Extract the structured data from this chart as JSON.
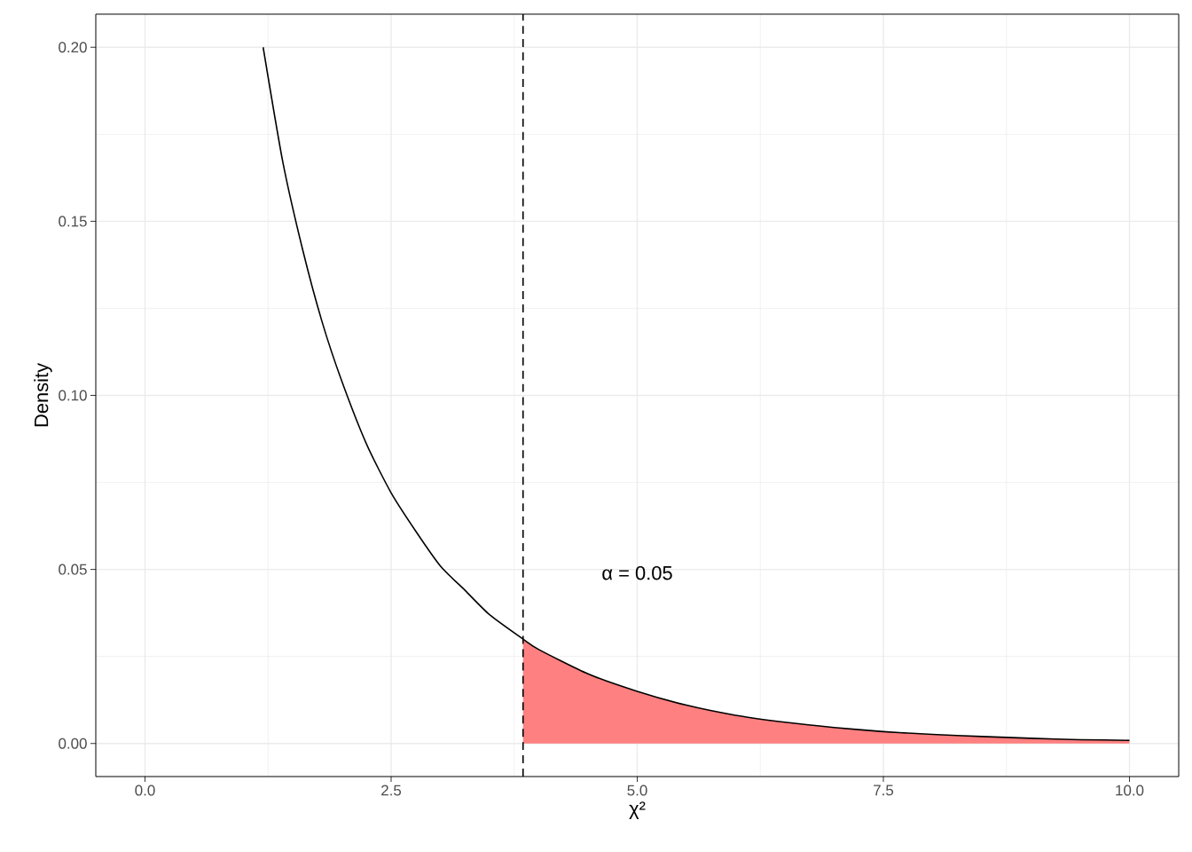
{
  "chart_data": {
    "type": "line",
    "xlabel": "χ²",
    "ylabel": "Density",
    "series": [
      {
        "type": "area",
        "color": "#ff8080",
        "x": [
          3.84,
          4.0,
          4.5,
          5.0,
          5.5,
          6.0,
          6.5,
          7.0,
          7.5,
          8.0,
          8.5,
          9.0,
          9.5,
          10.0
        ],
        "values": [
          0.03,
          0.027,
          0.02,
          0.015,
          0.011,
          0.0081,
          0.0061,
          0.0046,
          0.0034,
          0.0026,
          0.002,
          0.0015,
          0.0011,
          0.0009
        ]
      },
      {
        "color": "#000000",
        "x": [
          1.2,
          1.4,
          1.6,
          1.8,
          2.0,
          2.25,
          2.5,
          2.75,
          3.0,
          3.25,
          3.5,
          3.84,
          4.0,
          4.5,
          5.0,
          5.5,
          6.0,
          6.5,
          7.0,
          7.5,
          8.0,
          8.5,
          9.0,
          9.5,
          10.0
        ],
        "values": [
          0.2,
          0.167,
          0.142,
          0.121,
          0.104,
          0.086,
          0.072,
          0.061,
          0.051,
          0.044,
          0.037,
          0.03,
          0.027,
          0.02,
          0.015,
          0.011,
          0.0081,
          0.0061,
          0.0046,
          0.0034,
          0.0026,
          0.002,
          0.0015,
          0.0011,
          0.0009
        ]
      }
    ],
    "ref_lines": [
      {
        "axis": "x",
        "value": 3.84,
        "color": "#000000",
        "line_style": "dashed"
      }
    ],
    "annotations": [
      "α = 0.05"
    ],
    "xlim": [
      -0.5,
      10.5
    ],
    "ylim": [
      -0.0095,
      0.2095
    ],
    "xticks": [
      {
        "value": 0,
        "label": "0.0"
      },
      2.5,
      {
        "value": 5,
        "label": "5.0"
      },
      7.5,
      {
        "value": 10,
        "label": "10.0"
      }
    ],
    "yticks": [
      {
        "value": 0,
        "label": "0.00"
      },
      0.05,
      {
        "value": 0.1,
        "label": "0.10"
      },
      0.15,
      {
        "value": 0.2,
        "label": "0.20"
      }
    ],
    "grid": true
  }
}
